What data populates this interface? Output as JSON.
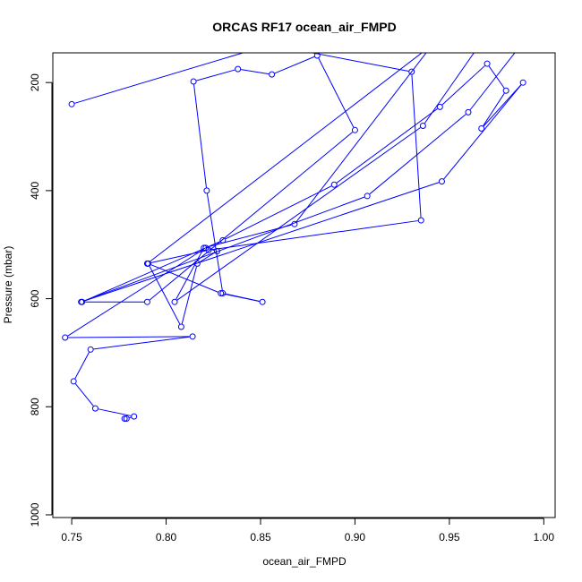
{
  "chart_data": {
    "type": "line",
    "title": "ORCAS RF17 ocean_air_FMPD",
    "xlabel": "ocean_air_FMPD",
    "ylabel": "Pressure (mbar)",
    "xlim": [
      0.74,
      1.006
    ],
    "ylim": [
      1005,
      145
    ],
    "y_inverted": true,
    "x_ticks": [
      0.75,
      0.8,
      0.85,
      0.9,
      0.95,
      1.0
    ],
    "x_tick_labels": [
      "0.75",
      "0.80",
      "0.85",
      "0.90",
      "0.95",
      "1.00"
    ],
    "y_ticks": [
      200,
      400,
      600,
      800,
      1000
    ],
    "y_tick_labels": [
      "200",
      "400",
      "600",
      "800",
      "1000"
    ],
    "series_color": "#0000ff",
    "marker": "open-circle",
    "grid": false,
    "series": [
      {
        "x": [
          0.778,
          0.779,
          0.783,
          0.7625,
          0.751,
          0.76,
          0.814,
          0.7465,
          0.821,
          0.827,
          0.8165,
          0.808,
          0.7905,
          0.829,
          0.851,
          0.83,
          0.8215,
          0.8145,
          0.838,
          0.856,
          0.88,
          0.9,
          0.79,
          0.7555,
          0.83,
          0.889,
          0.945,
          0.97,
          0.98,
          0.967,
          0.989,
          0.946,
          0.755,
          0.9065,
          0.96,
          0.988,
          0.966,
          0.936,
          0.8045,
          0.82,
          0.868,
          0.941,
          0.79,
          0.8225,
          0.935,
          0.93,
          0.855,
          0.75
        ],
        "y": [
          822,
          822,
          818,
          803,
          753,
          694,
          670,
          672,
          506,
          512,
          535,
          652,
          535,
          590,
          606,
          590,
          400,
          198,
          175,
          185,
          150,
          288,
          606,
          606,
          492,
          389,
          245,
          165,
          215,
          285,
          200,
          383,
          606,
          410,
          255,
          130,
          130,
          280,
          606,
          506,
          462,
          130,
          535,
          510,
          455,
          180,
          130,
          240
        ]
      }
    ]
  }
}
